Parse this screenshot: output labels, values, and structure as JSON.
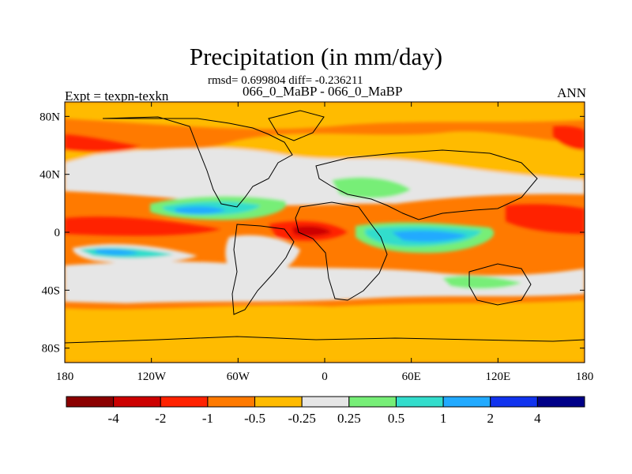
{
  "header": {
    "title": "Precipitation (in mm/day)",
    "stats": "rmsd= 0.699804 diff= -0.236211",
    "experiments": "066_0_MaBP - 066_0_MaBP",
    "expt_label": "Expt = texpn-texkn",
    "season": "ANN"
  },
  "chart_data": {
    "type": "heatmap",
    "title": "Precipitation (in mm/day)",
    "subtitle": "rmsd= 0.699804 diff= -0.236211",
    "xlim": [
      -180,
      180
    ],
    "ylim": [
      -90,
      90
    ],
    "x_ticks": [
      {
        "value": -180,
        "label": "180"
      },
      {
        "value": -120,
        "label": "120W"
      },
      {
        "value": -60,
        "label": "60W"
      },
      {
        "value": 0,
        "label": "0"
      },
      {
        "value": 60,
        "label": "60E"
      },
      {
        "value": 120,
        "label": "120E"
      },
      {
        "value": 180,
        "label": "180"
      }
    ],
    "y_ticks": [
      {
        "value": 80,
        "label": "80N"
      },
      {
        "value": 40,
        "label": "40N"
      },
      {
        "value": 0,
        "label": "0"
      },
      {
        "value": -40,
        "label": "40S"
      },
      {
        "value": -80,
        "label": "80S"
      }
    ],
    "levels": [
      -4,
      -2,
      -1,
      -0.5,
      -0.25,
      0.25,
      0.5,
      1,
      2,
      4
    ],
    "colorbar_labels": [
      "-4",
      "-2",
      "-1",
      "-0.5",
      "-0.25",
      "0.25",
      "0.5",
      "1",
      "2",
      "4"
    ],
    "colors": [
      "#8b0000",
      "#cc0000",
      "#ff2200",
      "#ff7a00",
      "#ffbb00",
      "#e6e6e6",
      "#77ee77",
      "#33ddcc",
      "#22aaff",
      "#1133ee",
      "#000088"
    ]
  }
}
